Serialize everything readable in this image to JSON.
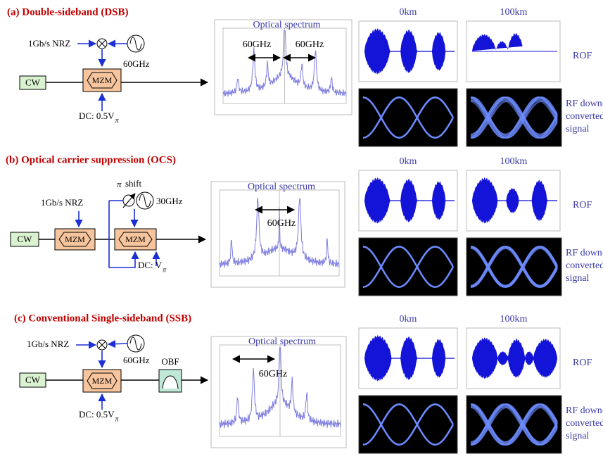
{
  "panels": [
    {
      "title": "(a) Double-sideband (DSB)",
      "data_rate": "1Gb/s NRZ",
      "rf_frequency": "60GHz",
      "source": "CW",
      "modulator": "MZM",
      "bias": "DC: 0.5V",
      "bias_subscript": "π",
      "spectrum_title": "Optical spectrum",
      "spacing": [
        "60GHz",
        "60GHz"
      ],
      "distances": [
        "0km",
        "100km"
      ],
      "waveform_label": "ROF",
      "eye_label": [
        "RF down-",
        "converted",
        "signal"
      ]
    },
    {
      "title": "(b) Optical carrier suppression (OCS)",
      "data_rate": "1Gb/s NRZ",
      "phase_shift": [
        "π",
        "shift"
      ],
      "rf_frequency": "30GHz",
      "source": "CW",
      "modulators": [
        "MZM",
        "MZM"
      ],
      "bias": "DC: V",
      "bias_subscript": "π",
      "spectrum_title": "Optical spectrum",
      "spacing": [
        "60GHz"
      ],
      "distances": [
        "0km",
        "100km"
      ],
      "waveform_label": "ROF",
      "eye_label": [
        "RF down-",
        "converted",
        "signal"
      ]
    },
    {
      "title": "(c) Conventional Single-sideband (SSB)",
      "data_rate": "1Gb/s NRZ",
      "rf_frequency": "60GHz",
      "source": "CW",
      "modulator": "MZM",
      "filter": "OBF",
      "bias": "DC: 0.5V",
      "bias_subscript": "π",
      "spectrum_title": "Optical spectrum",
      "spacing": [
        "60GHz"
      ],
      "distances": [
        "0km",
        "100km"
      ],
      "waveform_label": "ROF",
      "eye_label": [
        "RF down-",
        "converted",
        "signal"
      ]
    }
  ]
}
